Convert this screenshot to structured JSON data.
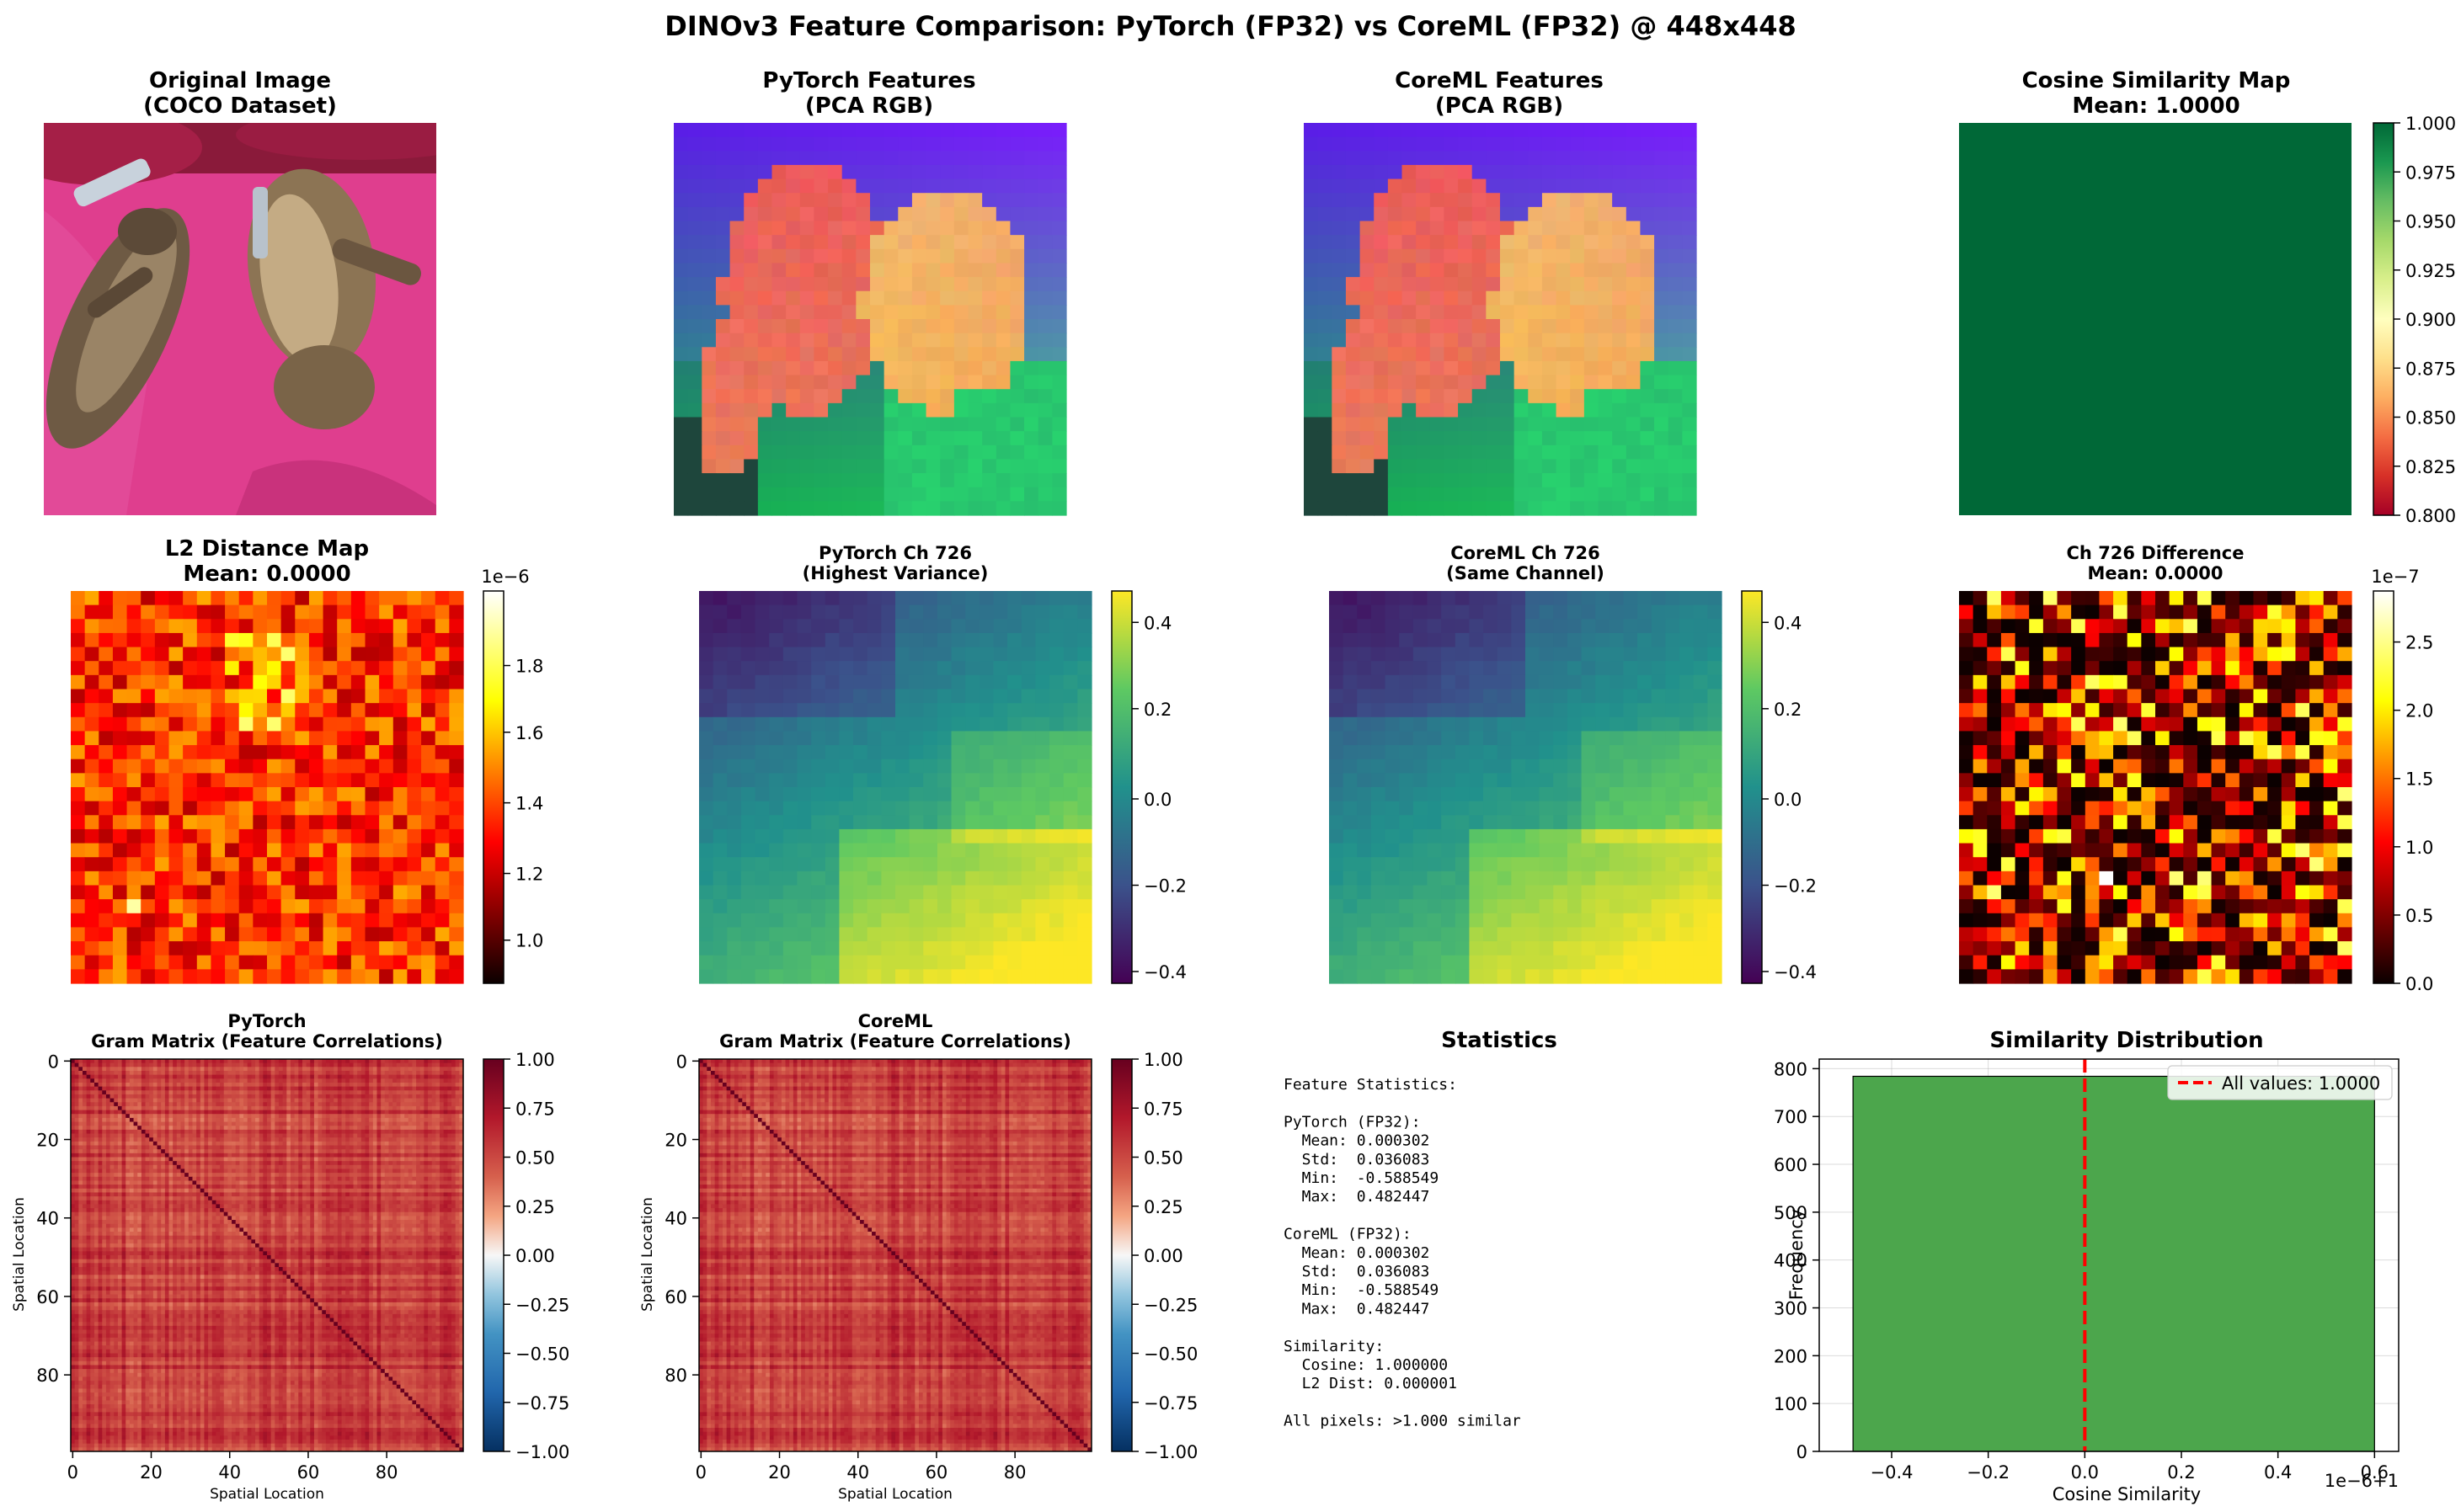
{
  "figure": {
    "title": "DINOv3 Feature Comparison: PyTorch (FP32) vs CoreML (FP32) @ 448x448"
  },
  "panels": {
    "original": {
      "title": [
        "Original Image",
        "(COCO Dataset)"
      ]
    },
    "pt_pca": {
      "title": [
        "PyTorch Features",
        "(PCA RGB)"
      ]
    },
    "cm_pca": {
      "title": [
        "CoreML Features",
        "(PCA RGB)"
      ]
    },
    "cos_map": {
      "title": [
        "Cosine Similarity Map",
        "Mean: 1.0000"
      ],
      "colormap": "RdYlGn",
      "cbar_ticks": [
        "0.800",
        "0.825",
        "0.850",
        "0.875",
        "0.900",
        "0.925",
        "0.950",
        "0.975",
        "1.000"
      ],
      "fill_color": "#006837"
    },
    "l2_map": {
      "title": [
        "L2 Distance Map",
        "Mean: 0.0000"
      ],
      "colormap": "hot",
      "cbar_ticks": [
        "1.0",
        "1.2",
        "1.4",
        "1.6",
        "1.8"
      ],
      "cbar_offset": "1e−6"
    },
    "pt_ch": {
      "title": [
        "PyTorch Ch 726",
        "(Highest Variance)"
      ],
      "colormap": "viridis",
      "cbar_ticks": [
        "0.4",
        "0.2",
        "0.0",
        "−0.2",
        "−0.4"
      ]
    },
    "cm_ch": {
      "title": [
        "CoreML Ch 726",
        "(Same Channel)"
      ],
      "colormap": "viridis",
      "cbar_ticks": [
        "0.4",
        "0.2",
        "0.0",
        "−0.2",
        "−0.4"
      ]
    },
    "ch_diff": {
      "title": [
        "Ch 726 Difference",
        "Mean: 0.0000"
      ],
      "colormap": "hot",
      "cbar_ticks": [
        "0.0",
        "0.5",
        "1.0",
        "1.5",
        "2.0",
        "2.5"
      ],
      "cbar_offset": "1e−7"
    },
    "pt_gram": {
      "title": [
        "PyTorch",
        "Gram Matrix (Feature Correlations)"
      ],
      "xlabel": "Spatial Location",
      "ylabel": "Spatial Location",
      "ticks": [
        "0",
        "20",
        "40",
        "60",
        "80"
      ],
      "colormap": "RdBu_r",
      "cbar_ticks": [
        "1.00",
        "0.75",
        "0.50",
        "0.25",
        "0.00",
        "−0.25",
        "−0.50",
        "−0.75",
        "−1.00"
      ]
    },
    "cm_gram": {
      "title": [
        "CoreML",
        "Gram Matrix (Feature Correlations)"
      ],
      "xlabel": "Spatial Location",
      "ylabel": "Spatial Location",
      "ticks": [
        "0",
        "20",
        "40",
        "60",
        "80"
      ],
      "colormap": "RdBu_r",
      "cbar_ticks": [
        "1.00",
        "0.75",
        "0.50",
        "0.25",
        "0.00",
        "−0.25",
        "−0.50",
        "−0.75",
        "−1.00"
      ]
    },
    "stats": {
      "title": "Statistics",
      "lines": [
        "Feature Statistics:",
        "",
        "PyTorch (FP32):",
        "  Mean: 0.000302",
        "  Std:  0.036083",
        "  Min:  -0.588549",
        "  Max:  0.482447",
        "",
        "CoreML (FP32):",
        "  Mean: 0.000302",
        "  Std:  0.036083",
        "  Min:  -0.588549",
        "  Max:  0.482447",
        "",
        "Similarity:",
        "  Cosine: 1.000000",
        "  L2 Dist: 0.000001",
        "",
        "All pixels: >1.000 similar"
      ]
    },
    "hist": {
      "title": "Similarity Distribution",
      "xlabel": "Cosine Similarity",
      "ylabel": "Frequency",
      "xticks": [
        "−0.4",
        "−0.2",
        "0.0",
        "0.2",
        "0.4",
        "0.6"
      ],
      "yticks": [
        "0",
        "100",
        "200",
        "300",
        "400",
        "500",
        "600",
        "700",
        "800"
      ],
      "x_offset": "1e−6+1",
      "legend": "All values: 1.0000",
      "bar_color": "#4ca64c",
      "line_color": "#ff0000"
    }
  },
  "chart_data": [
    {
      "type": "heatmap",
      "title": "Cosine Similarity Map",
      "subtitle": "Mean: 1.0000",
      "grid": [
        28,
        28
      ],
      "value_range": [
        0.8,
        1.0
      ],
      "values_uniform": 1.0
    },
    {
      "type": "heatmap",
      "title": "L2 Distance Map",
      "subtitle": "Mean: 0.0000",
      "grid": [
        28,
        28
      ],
      "value_range": [
        9e-07,
        1.95e-06
      ]
    },
    {
      "type": "heatmap",
      "title": "PyTorch Ch 726",
      "subtitle": "(Highest Variance)",
      "grid": [
        28,
        28
      ],
      "value_range": [
        -0.43,
        0.47
      ]
    },
    {
      "type": "heatmap",
      "title": "CoreML Ch 726",
      "subtitle": "(Same Channel)",
      "grid": [
        28,
        28
      ],
      "value_range": [
        -0.43,
        0.47
      ]
    },
    {
      "type": "heatmap",
      "title": "Ch 726 Difference",
      "subtitle": "Mean: 0.0000",
      "grid": [
        28,
        28
      ],
      "value_range": [
        0,
        2.7e-07
      ]
    },
    {
      "type": "heatmap",
      "title": "PyTorch Gram Matrix (Feature Correlations)",
      "grid": [
        100,
        100
      ],
      "value_range": [
        -1,
        1
      ],
      "xlabel": "Spatial Location",
      "ylabel": "Spatial Location"
    },
    {
      "type": "heatmap",
      "title": "CoreML Gram Matrix (Feature Correlations)",
      "grid": [
        100,
        100
      ],
      "value_range": [
        -1,
        1
      ],
      "xlabel": "Spatial Location",
      "ylabel": "Spatial Location"
    },
    {
      "type": "bar",
      "title": "Similarity Distribution",
      "xlabel": "Cosine Similarity",
      "ylabel": "Frequency",
      "xlim": [
        -0.55,
        0.65
      ],
      "ylim": [
        0,
        820
      ],
      "x_scale_note": "1e−6+1",
      "bars": [
        {
          "x0": -0.48,
          "x1": 0.6,
          "value": 784
        }
      ],
      "vline": {
        "x": 0.0,
        "label": "All values: 1.0000"
      },
      "grid": true,
      "legend_position": "upper-right"
    }
  ]
}
